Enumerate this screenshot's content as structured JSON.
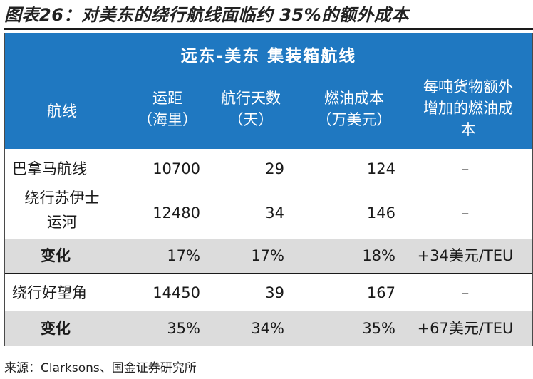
{
  "figure_title": "图表26：对美东的绕行航线面临约 35%的额外成本",
  "table": {
    "banner": "远东-美东 集装箱航线",
    "headers": {
      "route": "航线",
      "distance": [
        "运距",
        "（海里）"
      ],
      "days": [
        "航行天数",
        "（天）"
      ],
      "fuel_cost": [
        "燃油成本",
        "（万美元）"
      ],
      "extra_cost": [
        "每吨货物额外",
        "增加的燃油成",
        "本"
      ]
    },
    "rows": [
      {
        "route": [
          "巴拿马航线"
        ],
        "distance": "10700",
        "days": "29",
        "fuel_cost": "124",
        "extra_cost": "–"
      },
      {
        "route": [
          "绕行苏伊士",
          "运河"
        ],
        "distance": "12480",
        "days": "34",
        "fuel_cost": "146",
        "extra_cost": "–"
      },
      {
        "route": [
          "变化"
        ],
        "distance": "17%",
        "days": "17%",
        "fuel_cost": "18%",
        "extra_cost": "+34美元/TEU"
      },
      {
        "route": [
          "绕行好望角"
        ],
        "distance": "14450",
        "days": "39",
        "fuel_cost": "167",
        "extra_cost": "–"
      },
      {
        "route": [
          "变化"
        ],
        "distance": "35%",
        "days": "34%",
        "fuel_cost": "35%",
        "extra_cost": "+67美元/TEU"
      }
    ]
  },
  "source": "来源：Clarksons、国金证券研究所"
}
